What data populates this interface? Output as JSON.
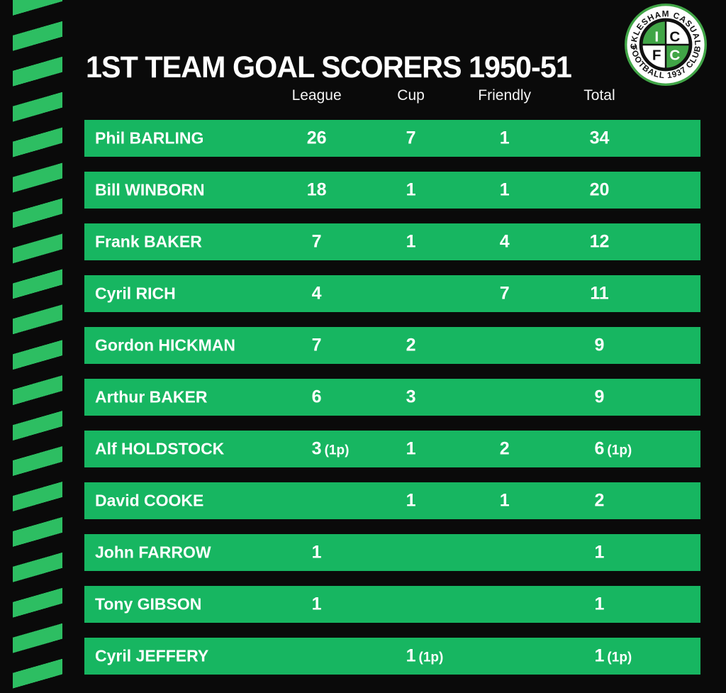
{
  "logo": {
    "arc_top": "ICKLESHAM CASUALS",
    "arc_bottom": "FOOTBALL 1937 CLUB",
    "quadrant_letters": [
      "I",
      "C",
      "F",
      "C"
    ]
  },
  "colors": {
    "background": "#0a0a0a",
    "row_green": "#17b661",
    "stripe_green": "#2dbe62",
    "badge_green": "#41a547",
    "text_white": "#ffffff"
  },
  "chart_data": {
    "type": "table",
    "title": "1ST TEAM GOAL SCORERS 1950-51",
    "columns": [
      "League",
      "Cup",
      "Friendly",
      "Total"
    ],
    "rows": [
      {
        "name": "Phil BARLING",
        "values": [
          "26",
          "7",
          "1",
          "34"
        ]
      },
      {
        "name": "Bill WINBORN",
        "values": [
          "18",
          "1",
          "1",
          "20"
        ]
      },
      {
        "name": "Frank BAKER",
        "values": [
          "7",
          "1",
          "4",
          "12"
        ]
      },
      {
        "name": "Cyril RICH",
        "values": [
          "4",
          "",
          "7",
          "11"
        ]
      },
      {
        "name": "Gordon HICKMAN",
        "values": [
          "7",
          "2",
          "",
          "9"
        ]
      },
      {
        "name": "Arthur BAKER",
        "values": [
          "6",
          "3",
          "",
          "9"
        ]
      },
      {
        "name": "Alf HOLDSTOCK",
        "values": [
          "3 (1p)",
          "1",
          "2",
          "6 (1p)"
        ]
      },
      {
        "name": "David COOKE",
        "values": [
          "",
          "1",
          "1",
          "2"
        ]
      },
      {
        "name": "John FARROW",
        "values": [
          "1",
          "",
          "",
          "1"
        ]
      },
      {
        "name": "Tony GIBSON",
        "values": [
          "1",
          "",
          "",
          "1"
        ]
      },
      {
        "name": "Cyril JEFFERY",
        "values": [
          "",
          "1 (1p)",
          "",
          "1 (1p)"
        ]
      }
    ],
    "layout": {
      "empty_cells_blank": true,
      "row_style": "solid green bars on black background",
      "note_suffix_meaning": "(1p) = includes 1 penalty"
    }
  }
}
